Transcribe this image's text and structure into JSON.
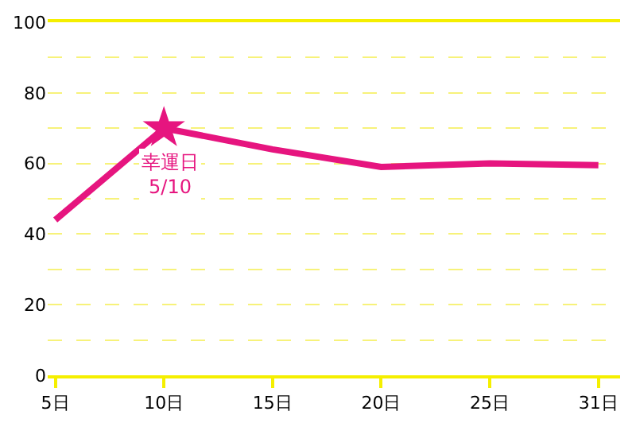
{
  "chart_data": {
    "type": "line",
    "categories": [
      "5日",
      "10日",
      "15日",
      "20日",
      "25日",
      "31日"
    ],
    "series": [
      {
        "color": "#e6157f",
        "values": [
          44,
          70,
          64,
          59,
          60,
          59.5
        ],
        "marker": "none",
        "line_style": "solid"
      },
      {
        "type": "scatter",
        "color": "#e6157f",
        "x": [
          "10日"
        ],
        "values": [
          70
        ],
        "marker": "star"
      }
    ],
    "ylim": [
      0,
      100
    ],
    "yticks": [
      0,
      {
        "value": 10,
        "label": null
      },
      20,
      {
        "value": 30,
        "label": null
      },
      40,
      {
        "value": 50,
        "label": null
      },
      60,
      {
        "value": 70,
        "label": null
      },
      80,
      {
        "value": 90,
        "label": null
      },
      100
    ],
    "grid": "y",
    "legend": false,
    "annotations": [
      {
        "text": "幸運日\n5/10",
        "x": "10日",
        "y": 70
      }
    ]
  }
}
